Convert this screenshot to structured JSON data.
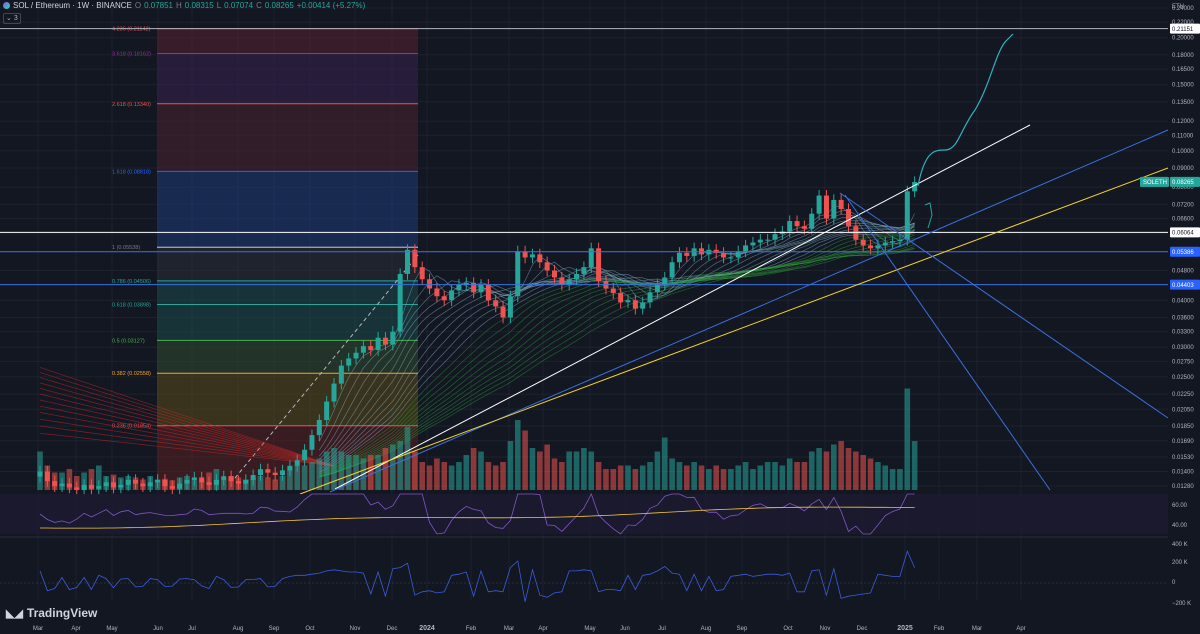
{
  "header": {
    "symbol": "SOL / Ethereum · 1W · BINANCE",
    "open_label": "O",
    "open": "0.07851",
    "high_label": "H",
    "high": "0.08315",
    "low_label": "L",
    "low": "0.07074",
    "close_label": "C",
    "close": "0.08265",
    "change": "+0.00414 (+5.27%)",
    "indicator_count": "3",
    "currency": "ETH"
  },
  "branding": {
    "logo": "TradingView"
  },
  "colors": {
    "up": "#26a69a",
    "down": "#ef5350",
    "fib_top": "#ef5350",
    "fib_blue": "#2962ff",
    "fib_teal": "#26a69a",
    "fib_orange": "#f5a623",
    "trend_white": "#ffffff",
    "trend_yellow": "#f5d327",
    "trend_blue": "#3b6fe0",
    "projection": "#2ab3c0"
  },
  "chart_data": {
    "type": "candlestick",
    "scale": "log",
    "y_tick_labels": [
      "0.24000",
      "0.22000",
      "0.20000",
      "0.18000",
      "0.16500",
      "0.15000",
      "0.13500",
      "0.12000",
      "0.11000",
      "0.10000",
      "0.09000",
      "0.08000",
      "0.07200",
      "0.06600",
      "0.06000",
      "0.05400",
      "0.04800",
      "0.04400",
      "0.04000",
      "0.03600",
      "0.03300",
      "0.03000",
      "0.02750",
      "0.02500",
      "0.02250",
      "0.02050",
      "0.01850",
      "0.01690",
      "0.01530",
      "0.01400",
      "0.01280"
    ],
    "x_tick_labels": [
      "Mar",
      "Apr",
      "May",
      "Jun",
      "Jul",
      "Aug",
      "Sep",
      "Oct",
      "Nov",
      "Dec",
      "2024",
      "Feb",
      "Mar",
      "Apr",
      "May",
      "Jun",
      "Jul",
      "Aug",
      "Sep",
      "Oct",
      "Nov",
      "Dec",
      "2025",
      "Feb",
      "Mar",
      "Apr"
    ],
    "price_labels": [
      {
        "text": "0.21151",
        "value": 0.21151,
        "style": "white"
      },
      {
        "text": "0.08265",
        "value": 0.08265,
        "style": "green",
        "name": "SOLETH"
      },
      {
        "text": "0.06064",
        "value": 0.06064,
        "style": "white"
      },
      {
        "text": "0.05386",
        "value": 0.05386,
        "style": "blue"
      },
      {
        "text": "0.04403",
        "value": 0.04403,
        "style": "blue"
      }
    ],
    "fib_levels": [
      {
        "label": "4.236 (0.21142)",
        "value": 0.21142,
        "color": "#ef5350"
      },
      {
        "label": "3.618 (0.18162)",
        "value": 0.18162,
        "color": "#9c27b0"
      },
      {
        "label": "2.618 (0.13340)",
        "value": 0.1334,
        "color": "#ef5350"
      },
      {
        "label": "1.618 (0.08818)",
        "value": 0.08818,
        "color": "#2962ff"
      },
      {
        "label": "1 (0.05538)",
        "value": 0.05538,
        "color": "#787b86"
      },
      {
        "label": "0.786 (0.04506)",
        "value": 0.04506,
        "color": "#26a69a"
      },
      {
        "label": "0.618 (0.03898)",
        "value": 0.03898,
        "color": "#26a69a"
      },
      {
        "label": "0.5 (0.03127)",
        "value": 0.03127,
        "color": "#4caf50"
      },
      {
        "label": "0.382 (0.02558)",
        "value": 0.02558,
        "color": "#f5a623"
      },
      {
        "label": "0.236 (0.01854)",
        "value": 0.01854,
        "color": "#ef5350"
      }
    ],
    "closes": [
      0.014,
      0.0132,
      0.0128,
      0.013,
      0.0127,
      0.0125,
      0.0129,
      0.0126,
      0.0128,
      0.0131,
      0.0127,
      0.0129,
      0.0133,
      0.013,
      0.0128,
      0.0131,
      0.0133,
      0.0128,
      0.0126,
      0.013,
      0.0133,
      0.0135,
      0.0131,
      0.0129,
      0.0133,
      0.0136,
      0.0132,
      0.013,
      0.0133,
      0.0137,
      0.0142,
      0.0139,
      0.0137,
      0.0141,
      0.0145,
      0.015,
      0.016,
      0.0175,
      0.0192,
      0.0215,
      0.024,
      0.0268,
      0.028,
      0.029,
      0.0302,
      0.0295,
      0.0318,
      0.0305,
      0.033,
      0.047,
      0.0545,
      0.049,
      0.0455,
      0.043,
      0.041,
      0.04,
      0.0425,
      0.044,
      0.0445,
      0.042,
      0.044,
      0.04,
      0.0385,
      0.036,
      0.041,
      0.054,
      0.052,
      0.053,
      0.0505,
      0.048,
      0.046,
      0.044,
      0.0455,
      0.047,
      0.049,
      0.055,
      0.045,
      0.043,
      0.0418,
      0.0395,
      0.04,
      0.038,
      0.0395,
      0.042,
      0.044,
      0.046,
      0.0505,
      0.0535,
      0.0525,
      0.055,
      0.053,
      0.0545,
      0.0535,
      0.052,
      0.052,
      0.054,
      0.056,
      0.057,
      0.058,
      0.058,
      0.06,
      0.061,
      0.065,
      0.063,
      0.062,
      0.068,
      0.076,
      0.066,
      0.074,
      0.07,
      0.063,
      0.058,
      0.056,
      0.055,
      0.056,
      0.057,
      0.0575,
      0.058,
      0.078,
      0.0826
    ],
    "volume_relative": [
      0.55,
      0.35,
      0.25,
      0.25,
      0.3,
      0.2,
      0.25,
      0.3,
      0.35,
      0.2,
      0.22,
      0.18,
      0.2,
      0.18,
      0.15,
      0.2,
      0.15,
      0.16,
      0.14,
      0.18,
      0.2,
      0.15,
      0.13,
      0.25,
      0.3,
      0.15,
      0.2,
      0.18,
      0.15,
      0.16,
      0.2,
      0.18,
      0.15,
      0.2,
      0.3,
      0.35,
      0.35,
      0.4,
      0.45,
      0.55,
      0.6,
      0.55,
      0.5,
      0.5,
      0.45,
      0.5,
      0.5,
      0.6,
      0.65,
      0.7,
      0.9,
      0.55,
      0.4,
      0.35,
      0.45,
      0.4,
      0.35,
      0.4,
      0.5,
      0.6,
      0.55,
      0.4,
      0.35,
      0.4,
      0.7,
      1.0,
      0.85,
      0.6,
      0.55,
      0.65,
      0.45,
      0.4,
      0.55,
      0.55,
      0.6,
      0.55,
      0.4,
      0.3,
      0.3,
      0.35,
      0.35,
      0.3,
      0.35,
      0.4,
      0.55,
      0.75,
      0.45,
      0.4,
      0.35,
      0.4,
      0.35,
      0.3,
      0.35,
      0.3,
      0.3,
      0.35,
      0.4,
      0.3,
      0.35,
      0.4,
      0.4,
      0.35,
      0.45,
      0.4,
      0.4,
      0.55,
      0.6,
      0.55,
      0.65,
      0.7,
      0.6,
      0.55,
      0.5,
      0.45,
      0.4,
      0.35,
      0.3,
      0.3,
      1.45,
      0.7
    ],
    "rsi_levels": [
      "60.00",
      "40.00"
    ],
    "osc_levels": [
      "400 K",
      "200 K",
      "0",
      "−200 K"
    ]
  }
}
